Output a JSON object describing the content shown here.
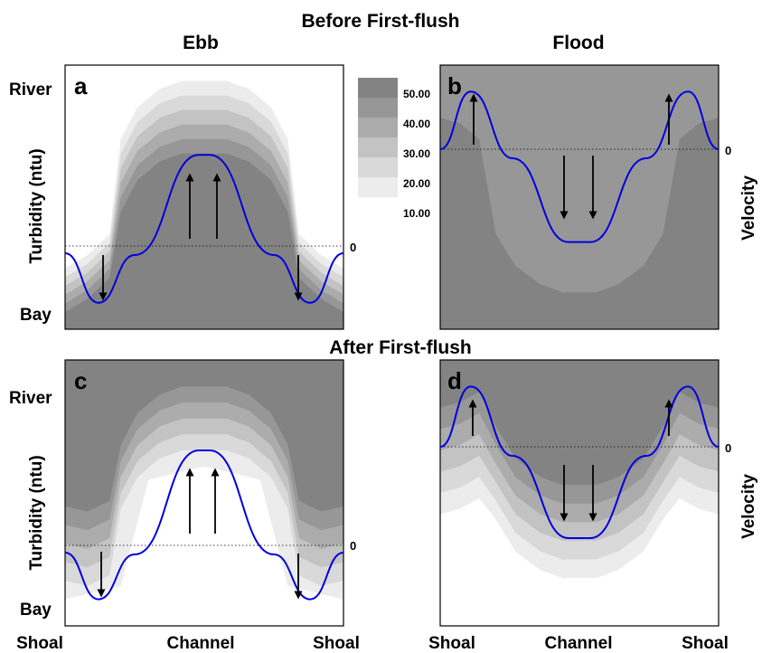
{
  "headers": {
    "before": "Before First-flush",
    "after": "After First-flush",
    "ebb": "Ebb",
    "flood": "Flood"
  },
  "labels": {
    "river": "River",
    "bay": "Bay",
    "turbidity": "Turbidity (ntu)",
    "velocity": "Velocity",
    "shoal": "Shoal",
    "channel": "Channel",
    "zero": "0"
  },
  "legend": {
    "levels": [
      "50.00",
      "40.00",
      "30.00",
      "20.00",
      "10.00"
    ],
    "colors": [
      "#838383",
      "#979797",
      "#acacac",
      "#c3c3c3",
      "#d9d9d9",
      "#ececec"
    ]
  },
  "colors": {
    "velocity_line": "#0000dd",
    "arrow": "#000000"
  },
  "chart_data": [
    {
      "panel": "a",
      "type": "contour",
      "tide": "Ebb",
      "period": "Before First-flush",
      "velocity_profile": "ebb",
      "arrows": [
        "down",
        "up",
        "up",
        "down"
      ]
    },
    {
      "panel": "b",
      "type": "contour",
      "tide": "Flood",
      "period": "Before First-flush",
      "velocity_profile": "flood",
      "arrows": [
        "up",
        "down",
        "down",
        "up"
      ]
    },
    {
      "panel": "c",
      "type": "contour",
      "tide": "Ebb",
      "period": "After First-flush",
      "velocity_profile": "ebb",
      "arrows": [
        "down",
        "up",
        "up",
        "down"
      ]
    },
    {
      "panel": "d",
      "type": "contour",
      "tide": "Flood",
      "period": "After First-flush",
      "velocity_profile": "flood",
      "arrows": [
        "up",
        "down",
        "down",
        "up"
      ]
    }
  ]
}
